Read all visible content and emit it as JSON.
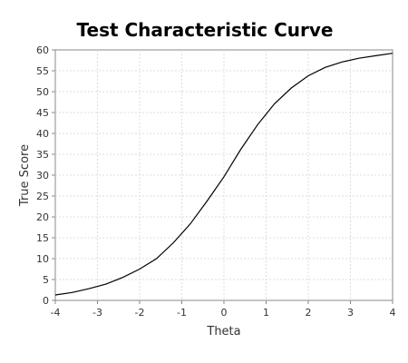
{
  "chart_data": {
    "type": "line",
    "title": "Test Characteristic Curve",
    "xlabel": "Theta",
    "ylabel": "True Score",
    "xlim": [
      -4,
      4
    ],
    "ylim": [
      0,
      60
    ],
    "xticks": [
      -4,
      -3,
      -2,
      -1,
      0,
      1,
      2,
      3,
      4
    ],
    "yticks": [
      0,
      5,
      10,
      15,
      20,
      25,
      30,
      35,
      40,
      45,
      50,
      55,
      60
    ],
    "grid": true,
    "series": [
      {
        "color": "#000000",
        "x": [
          -4.0,
          -3.6,
          -3.2,
          -2.8,
          -2.4,
          -2.0,
          -1.6,
          -1.2,
          -0.8,
          -0.4,
          0.0,
          0.4,
          0.8,
          1.2,
          1.6,
          2.0,
          2.4,
          2.8,
          3.2,
          3.6,
          4.0
        ],
        "y": [
          1.3,
          1.9,
          2.8,
          3.9,
          5.5,
          7.5,
          10.0,
          13.8,
          18.3,
          23.8,
          29.6,
          36.2,
          42.1,
          47.1,
          50.9,
          53.8,
          55.8,
          57.1,
          58.0,
          58.6,
          59.2
        ]
      }
    ]
  }
}
